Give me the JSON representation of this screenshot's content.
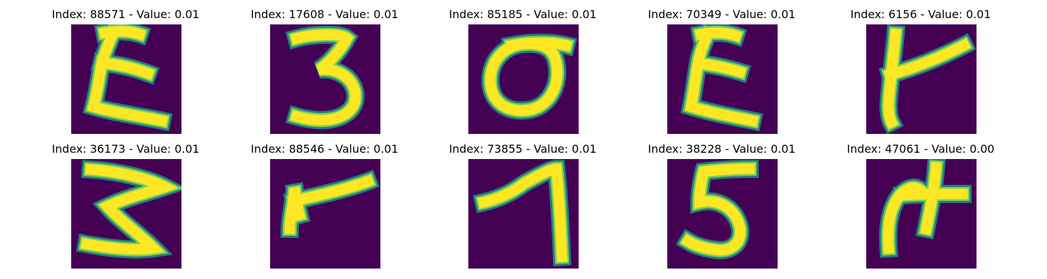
{
  "colors": {
    "background": "#440154",
    "stroke_edge": "#21918c",
    "stroke_mid": "#7ad151",
    "stroke_core": "#fde725"
  },
  "panels": [
    {
      "title": "Index: 88571 - Value: 0.01",
      "glyph": "epsilon"
    },
    {
      "title": "Index: 17608 - Value: 0.01",
      "glyph": "three"
    },
    {
      "title": "Index: 85185 - Value: 0.01",
      "glyph": "zero"
    },
    {
      "title": "Index: 70349 - Value: 0.01",
      "glyph": "epsilon"
    },
    {
      "title": "Index: 6156 - Value: 0.01",
      "glyph": "hook-right"
    },
    {
      "title": "Index: 36173 - Value: 0.01",
      "glyph": "three-pointed"
    },
    {
      "title": "Index: 88546 - Value: 0.01",
      "glyph": "hook-right"
    },
    {
      "title": "Index: 73855 - Value: 0.01",
      "glyph": "seven"
    },
    {
      "title": "Index: 38228 - Value: 0.01",
      "glyph": "five"
    },
    {
      "title": "Index: 47061 - Value: 0.00",
      "glyph": "four-open"
    }
  ]
}
